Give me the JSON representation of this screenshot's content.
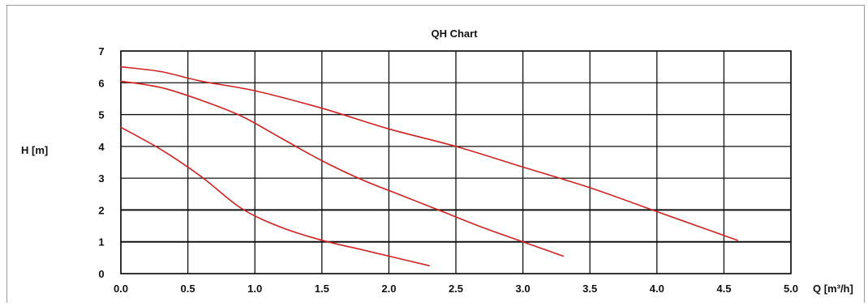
{
  "chart_data": {
    "type": "line",
    "title": "QH Chart",
    "xlabel": "Q [m³/h]",
    "ylabel": "H [m]",
    "xlim": [
      0,
      5
    ],
    "ylim": [
      0,
      7
    ],
    "x_ticks": [
      "0.0",
      "0.5",
      "1.0",
      "1.5",
      "2.0",
      "2.5",
      "3.0",
      "3.5",
      "4.0",
      "4.5",
      "5.0"
    ],
    "y_ticks": [
      "0",
      "1",
      "2",
      "3",
      "4",
      "5",
      "6",
      "7"
    ],
    "grid": true,
    "line_color": "#d42020",
    "series": [
      {
        "points": [
          [
            0,
            4.6
          ],
          [
            0.3,
            3.9
          ],
          [
            0.6,
            3.05
          ],
          [
            0.9,
            2.05
          ],
          [
            1.2,
            1.45
          ],
          [
            1.5,
            1.05
          ],
          [
            1.8,
            0.75
          ],
          [
            2.0,
            0.55
          ],
          [
            2.3,
            0.25
          ]
        ]
      },
      {
        "points": [
          [
            0,
            6.05
          ],
          [
            0.3,
            5.85
          ],
          [
            0.6,
            5.45
          ],
          [
            0.9,
            4.95
          ],
          [
            1.2,
            4.25
          ],
          [
            1.5,
            3.55
          ],
          [
            1.8,
            2.95
          ],
          [
            2.1,
            2.45
          ],
          [
            2.4,
            1.95
          ],
          [
            2.7,
            1.45
          ],
          [
            3.0,
            1.0
          ],
          [
            3.3,
            0.55
          ]
        ]
      },
      {
        "points": [
          [
            0,
            6.5
          ],
          [
            0.3,
            6.35
          ],
          [
            0.6,
            6.05
          ],
          [
            1.0,
            5.75
          ],
          [
            1.5,
            5.2
          ],
          [
            2.0,
            4.55
          ],
          [
            2.5,
            4.0
          ],
          [
            3.0,
            3.35
          ],
          [
            3.5,
            2.7
          ],
          [
            4.0,
            1.95
          ],
          [
            4.3,
            1.5
          ],
          [
            4.6,
            1.05
          ]
        ]
      }
    ]
  }
}
